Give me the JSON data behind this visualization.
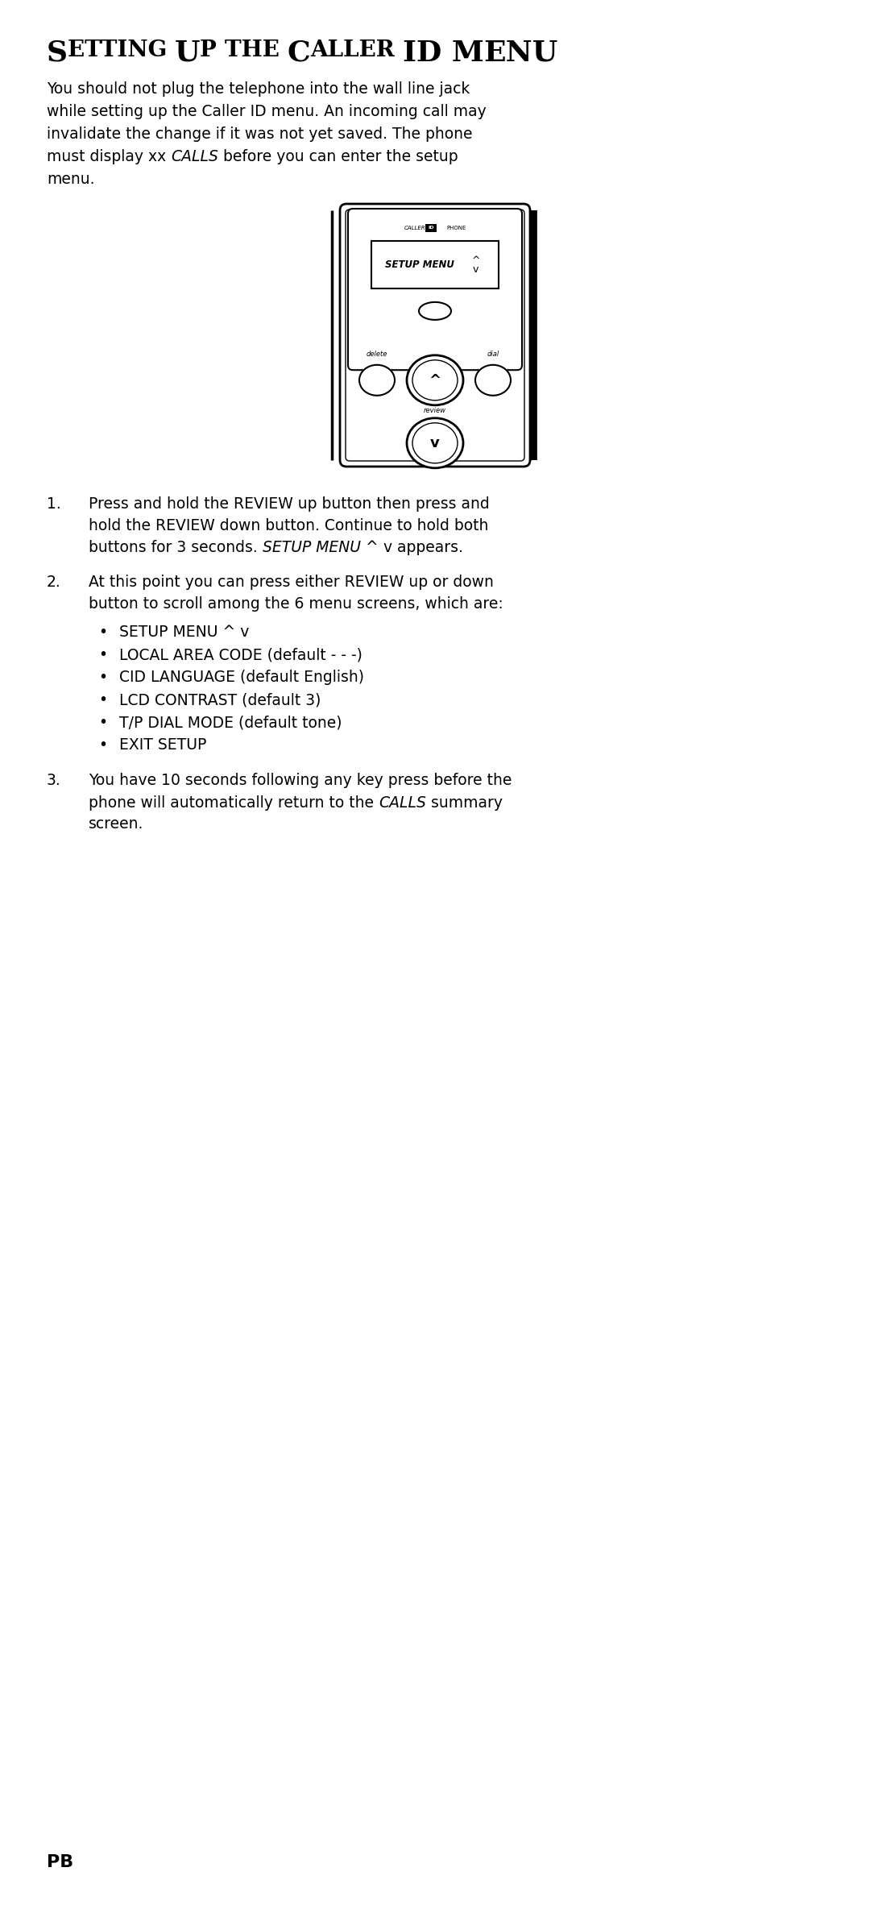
{
  "title": "SETTING UP THE CALLER ID MENU",
  "intro_lines": [
    "You should not plug the telephone into the wall line jack",
    "while setting up the Caller ID menu. An incoming call may",
    "invalidate the change if it was not yet saved. The phone",
    [
      "must display ",
      "xx ",
      "CALLS",
      " before you can enter the setup"
    ],
    "menu."
  ],
  "step1_lines": [
    "Press and hold the REVIEW up button then press and",
    "hold the REVIEW down button. Continue to hold both",
    [
      "buttons for 3 seconds. ",
      "SETUP MENU",
      " ^ ",
      "v",
      " appears."
    ]
  ],
  "step2_line1": "At this point you can press either REVIEW up or down",
  "step2_line2": "button to scroll among the 6 menu screens, which are:",
  "bullet_items": [
    "SETUP MENU ^ v",
    "LOCAL AREA CODE (default - - -)",
    "CID LANGUAGE (default English)",
    "LCD CONTRAST (default 3)",
    "T/P DIAL MODE (default tone)",
    "EXIT SETUP"
  ],
  "step3_lines": [
    "You have 10 seconds following any key press before the",
    [
      "phone will automatically return to the ",
      "CALLS",
      " summary"
    ],
    "screen."
  ],
  "footer": "PB",
  "bg_color": "#ffffff",
  "text_color": "#000000"
}
